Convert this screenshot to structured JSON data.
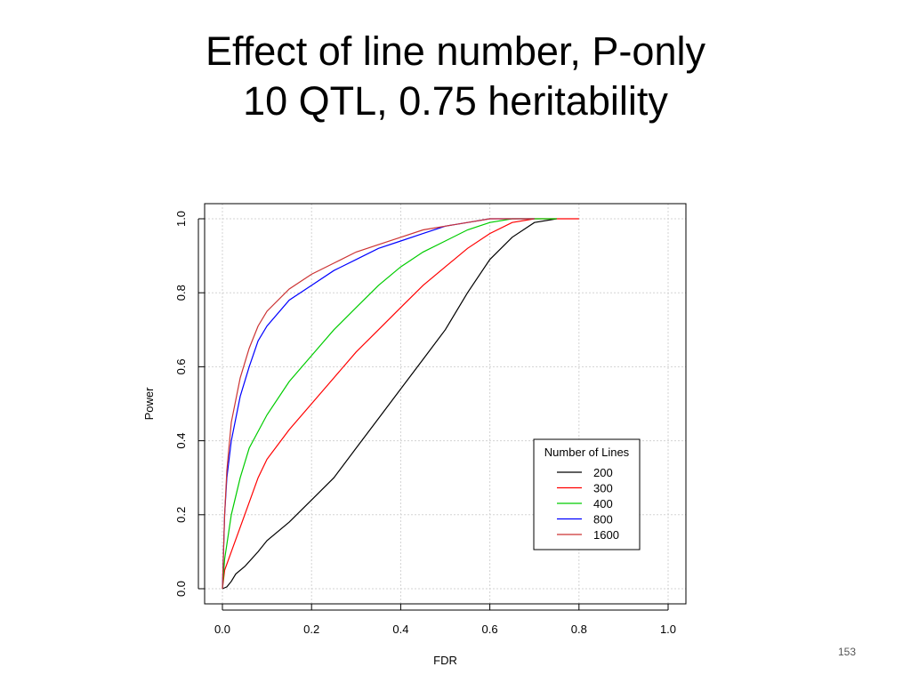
{
  "slide": {
    "title_line1": "Effect of line number, P-only",
    "title_line2": "10 QTL, 0.75 heritability",
    "page_number": "153"
  },
  "chart_data": {
    "type": "line",
    "title": "",
    "xlabel": "FDR",
    "ylabel": "Power",
    "xlim": [
      0.0,
      1.0
    ],
    "ylim": [
      0.0,
      1.0
    ],
    "xticks": [
      "0.0",
      "0.2",
      "0.4",
      "0.6",
      "0.8",
      "1.0"
    ],
    "yticks": [
      "0.0",
      "0.2",
      "0.4",
      "0.6",
      "0.8",
      "1.0"
    ],
    "grid": true,
    "legend": {
      "title": "Number of Lines",
      "position": "bottom-right"
    },
    "series": [
      {
        "name": "200",
        "color": "#000000",
        "points": [
          [
            0.0,
            0.0
          ],
          [
            0.01,
            0.005
          ],
          [
            0.02,
            0.02
          ],
          [
            0.03,
            0.04
          ],
          [
            0.05,
            0.06
          ],
          [
            0.08,
            0.1
          ],
          [
            0.1,
            0.13
          ],
          [
            0.15,
            0.18
          ],
          [
            0.2,
            0.24
          ],
          [
            0.25,
            0.3
          ],
          [
            0.3,
            0.38
          ],
          [
            0.35,
            0.46
          ],
          [
            0.4,
            0.54
          ],
          [
            0.45,
            0.62
          ],
          [
            0.5,
            0.7
          ],
          [
            0.55,
            0.8
          ],
          [
            0.6,
            0.89
          ],
          [
            0.65,
            0.95
          ],
          [
            0.7,
            0.99
          ],
          [
            0.75,
            1.0
          ]
        ]
      },
      {
        "name": "300",
        "color": "#ff0000",
        "points": [
          [
            0.0,
            0.0
          ],
          [
            0.005,
            0.05
          ],
          [
            0.02,
            0.1
          ],
          [
            0.05,
            0.2
          ],
          [
            0.08,
            0.3
          ],
          [
            0.1,
            0.35
          ],
          [
            0.15,
            0.43
          ],
          [
            0.2,
            0.5
          ],
          [
            0.25,
            0.57
          ],
          [
            0.3,
            0.64
          ],
          [
            0.35,
            0.7
          ],
          [
            0.4,
            0.76
          ],
          [
            0.45,
            0.82
          ],
          [
            0.5,
            0.87
          ],
          [
            0.55,
            0.92
          ],
          [
            0.6,
            0.96
          ],
          [
            0.65,
            0.99
          ],
          [
            0.7,
            1.0
          ],
          [
            0.8,
            1.0
          ]
        ]
      },
      {
        "name": "400",
        "color": "#00cc00",
        "points": [
          [
            0.0,
            0.0
          ],
          [
            0.005,
            0.08
          ],
          [
            0.02,
            0.2
          ],
          [
            0.04,
            0.3
          ],
          [
            0.06,
            0.38
          ],
          [
            0.1,
            0.47
          ],
          [
            0.15,
            0.56
          ],
          [
            0.2,
            0.63
          ],
          [
            0.25,
            0.7
          ],
          [
            0.3,
            0.76
          ],
          [
            0.35,
            0.82
          ],
          [
            0.4,
            0.87
          ],
          [
            0.45,
            0.91
          ],
          [
            0.5,
            0.94
          ],
          [
            0.55,
            0.97
          ],
          [
            0.6,
            0.99
          ],
          [
            0.65,
            1.0
          ],
          [
            0.75,
            1.0
          ]
        ]
      },
      {
        "name": "800",
        "color": "#0000ff",
        "points": [
          [
            0.0,
            0.0
          ],
          [
            0.005,
            0.2
          ],
          [
            0.01,
            0.3
          ],
          [
            0.02,
            0.4
          ],
          [
            0.04,
            0.52
          ],
          [
            0.06,
            0.6
          ],
          [
            0.08,
            0.67
          ],
          [
            0.1,
            0.71
          ],
          [
            0.15,
            0.78
          ],
          [
            0.2,
            0.82
          ],
          [
            0.25,
            0.86
          ],
          [
            0.3,
            0.89
          ],
          [
            0.35,
            0.92
          ],
          [
            0.4,
            0.94
          ],
          [
            0.45,
            0.96
          ],
          [
            0.5,
            0.98
          ],
          [
            0.55,
            0.99
          ],
          [
            0.6,
            1.0
          ],
          [
            0.7,
            1.0
          ]
        ]
      },
      {
        "name": "1600",
        "color": "#cc3333",
        "points": [
          [
            0.0,
            0.0
          ],
          [
            0.005,
            0.2
          ],
          [
            0.01,
            0.32
          ],
          [
            0.02,
            0.45
          ],
          [
            0.04,
            0.57
          ],
          [
            0.06,
            0.65
          ],
          [
            0.08,
            0.71
          ],
          [
            0.1,
            0.75
          ],
          [
            0.15,
            0.81
          ],
          [
            0.2,
            0.85
          ],
          [
            0.25,
            0.88
          ],
          [
            0.3,
            0.91
          ],
          [
            0.35,
            0.93
          ],
          [
            0.4,
            0.95
          ],
          [
            0.45,
            0.97
          ],
          [
            0.5,
            0.98
          ],
          [
            0.55,
            0.99
          ],
          [
            0.6,
            1.0
          ],
          [
            0.7,
            1.0
          ]
        ]
      }
    ]
  }
}
